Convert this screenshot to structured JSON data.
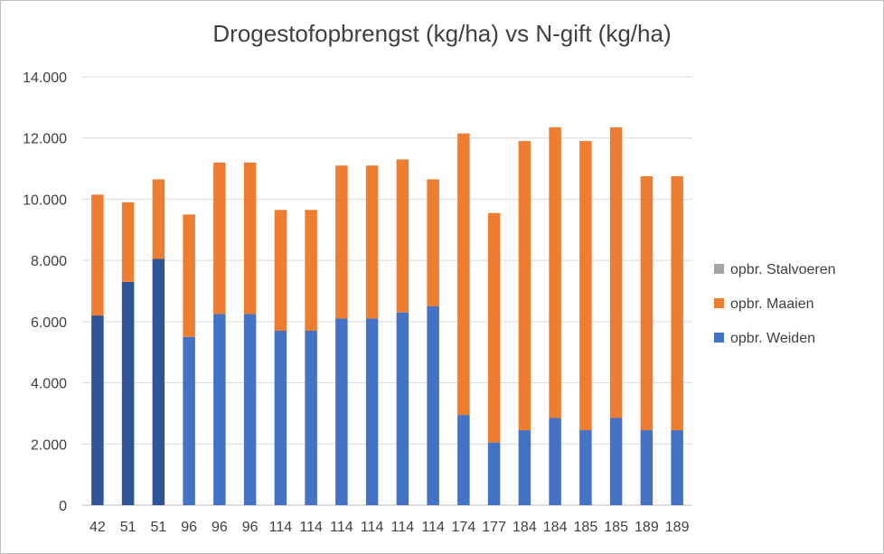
{
  "chart_data": {
    "type": "bar",
    "stacked": true,
    "title": "Drogestofopbrengst (kg/ha) vs N-gift (kg/ha)",
    "xlabel": "",
    "ylabel": "",
    "categories": [
      "42",
      "51",
      "51",
      "96",
      "96",
      "96",
      "114",
      "114",
      "114",
      "114",
      "114",
      "114",
      "174",
      "177",
      "184",
      "184",
      "185",
      "185",
      "189",
      "189"
    ],
    "ylim": [
      0,
      14000
    ],
    "yticks": [
      0,
      2000,
      4000,
      6000,
      8000,
      10000,
      12000,
      14000
    ],
    "ytick_labels": [
      "0",
      "2.000",
      "4.000",
      "6.000",
      "8.000",
      "10.000",
      "12.000",
      "14.000"
    ],
    "grid": true,
    "legend_position": "right",
    "series": [
      {
        "name": "opbr. Weiden",
        "color": "#4472c4",
        "values": [
          6200,
          7300,
          8050,
          5500,
          6250,
          6250,
          5700,
          5700,
          6100,
          6100,
          6300,
          6500,
          2950,
          2050,
          2450,
          2850,
          2450,
          2850,
          2450,
          2450
        ]
      },
      {
        "name": "opbr. Maaien",
        "color": "#ed7d31",
        "values": [
          3950,
          2600,
          2600,
          4000,
          4950,
          4950,
          3950,
          3950,
          5000,
          5000,
          5000,
          4150,
          9200,
          7500,
          9450,
          9500,
          9450,
          9500,
          8300,
          8300
        ]
      },
      {
        "name": "opbr. Stalvoeren",
        "color": "#a5a5a5",
        "values": [
          0,
          0,
          0,
          0,
          0,
          0,
          0,
          0,
          0,
          0,
          0,
          0,
          0,
          0,
          0,
          0,
          0,
          0,
          0,
          0
        ]
      }
    ],
    "highlight_color": "#2f5597",
    "highlight_bars": [
      0,
      1,
      2
    ]
  }
}
